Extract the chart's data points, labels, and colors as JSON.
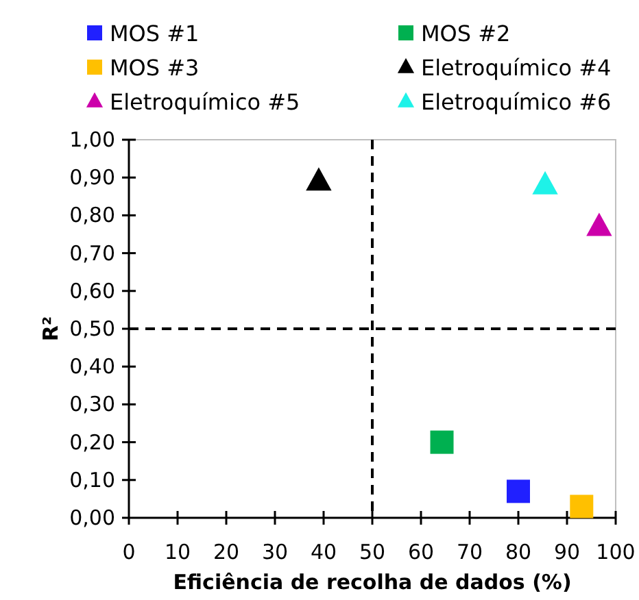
{
  "chart_data": {
    "type": "scatter",
    "xlabel": "Eficiência de recolha de dados (%)",
    "ylabel": "R²",
    "xlim": [
      0,
      100
    ],
    "xticks": [
      0,
      10,
      20,
      30,
      40,
      50,
      60,
      70,
      80,
      90,
      100
    ],
    "ylim": [
      0,
      1
    ],
    "yticks": [
      {
        "value": 0,
        "label": "0,00"
      },
      {
        "value": 0.1,
        "label": "0,10"
      },
      {
        "value": 0.2,
        "label": "0,20"
      },
      {
        "value": 0.3,
        "label": "0,30"
      },
      {
        "value": 0.4,
        "label": "0,40"
      },
      {
        "value": 0.5,
        "label": "0,50"
      },
      {
        "value": 0.6,
        "label": "0,60"
      },
      {
        "value": 0.7,
        "label": "0,70"
      },
      {
        "value": 0.8,
        "label": "0,80"
      },
      {
        "value": 0.9,
        "label": "0,90"
      },
      {
        "value": 1,
        "label": "1,00"
      }
    ],
    "grid": false,
    "legend": "top",
    "ref_lines": [
      {
        "axis": "x",
        "value": 50,
        "line_style": "dashed",
        "color": "#000000"
      },
      {
        "axis": "y",
        "value": 0.5,
        "line_style": "dashed",
        "color": "#000000"
      }
    ],
    "series": [
      {
        "name": "MOS #1",
        "color": "#2020ff",
        "marker": "square",
        "x": [
          80
        ],
        "values": [
          0.07
        ]
      },
      {
        "name": "MOS #2",
        "color": "#00b050",
        "marker": "square",
        "x": [
          64.3
        ],
        "values": [
          0.2
        ]
      },
      {
        "name": "MOS #3",
        "color": "#ffc000",
        "marker": "square",
        "x": [
          93
        ],
        "values": [
          0.03
        ]
      },
      {
        "name": "Eletroquímico #4",
        "color": "#000000",
        "marker": "triangle",
        "x": [
          39
        ],
        "values": [
          0.89
        ]
      },
      {
        "name": "Eletroquímico #5",
        "color": "#cc00aa",
        "marker": "triangle",
        "x": [
          96.6
        ],
        "values": [
          0.77
        ]
      },
      {
        "name": "Eletroquímico #6",
        "color": "#1ef2e8",
        "marker": "triangle",
        "x": [
          85.5
        ],
        "values": [
          0.88
        ]
      }
    ]
  }
}
